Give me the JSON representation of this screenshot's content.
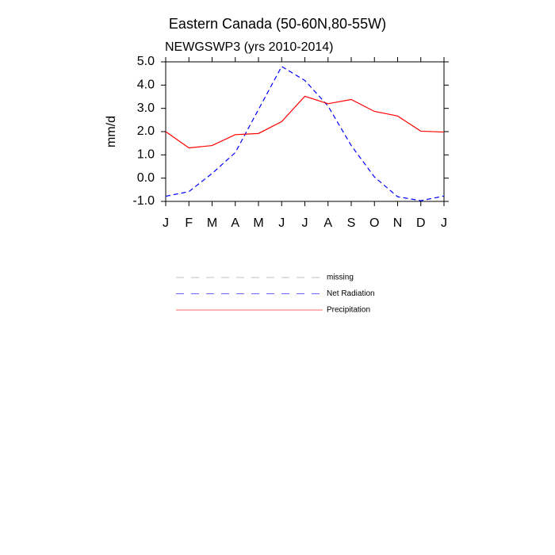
{
  "chart_data": {
    "type": "line",
    "title": "Eastern Canada (50-60N,80-55W)",
    "subtitle": "NEWGSWP3 (yrs 2010-2014)",
    "y_label": "mm/d",
    "categories": [
      "J",
      "F",
      "M",
      "A",
      "M",
      "J",
      "J",
      "A",
      "S",
      "O",
      "N",
      "D",
      "J"
    ],
    "series": [
      {
        "name": "missing",
        "color": "#999999",
        "line_style": "dashed",
        "values": [
          null,
          null,
          null,
          null,
          null,
          null,
          null,
          null,
          null,
          null,
          null,
          null,
          null
        ]
      },
      {
        "name": "Net Radiation",
        "color": "#0000ff",
        "line_style": "dashed",
        "values": [
          -0.78,
          -0.58,
          0.2,
          1.1,
          2.95,
          4.8,
          4.2,
          3.1,
          1.4,
          0.05,
          -0.8,
          -0.97,
          -0.77
        ]
      },
      {
        "name": "Precipitation",
        "color": "#ff0000",
        "line_style": "solid",
        "values": [
          2.0,
          1.3,
          1.4,
          1.87,
          1.92,
          2.43,
          3.52,
          3.2,
          3.38,
          2.87,
          2.67,
          2.02,
          1.98
        ]
      }
    ],
    "ylim": [
      -1,
      5
    ],
    "yticks": [
      {
        "value": -1,
        "label": "-1.0"
      },
      {
        "value": 0,
        "label": "0.0"
      },
      {
        "value": 1,
        "label": "1.0"
      },
      {
        "value": 2,
        "label": "2.0"
      },
      {
        "value": 3,
        "label": "3.0"
      },
      {
        "value": 4,
        "label": "4.0"
      },
      {
        "value": 5,
        "label": "5.0"
      }
    ],
    "grid": false
  }
}
